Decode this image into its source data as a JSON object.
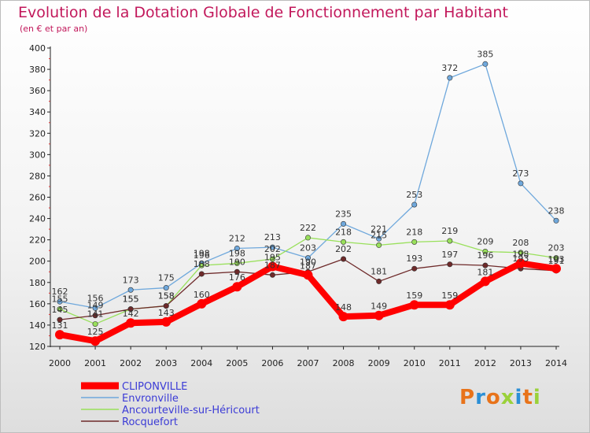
{
  "chart_data": {
    "type": "line",
    "title": "Evolution de la Dotation Globale de Fonctionnement par Habitant",
    "subtitle": "(en € et par an)",
    "categories": [
      "2000",
      "2001",
      "2002",
      "2003",
      "2004",
      "2005",
      "2006",
      "2007",
      "2008",
      "2009",
      "2010",
      "2011",
      "2012",
      "2013",
      "2014"
    ],
    "ylim": [
      120,
      400
    ],
    "yticks": [
      120,
      140,
      160,
      180,
      200,
      220,
      240,
      260,
      280,
      300,
      320,
      340,
      360,
      380,
      400
    ],
    "grid": false,
    "legend_position": "bottom-left",
    "series": [
      {
        "name": "CLIPONVILLE",
        "color": "#ff0000",
        "values": [
          131,
          125,
          142,
          143,
          160,
          176,
          195,
          187,
          148,
          149,
          159,
          159,
          181,
          198,
          193
        ],
        "labels": [
          "131",
          "125",
          "142",
          "143",
          "160",
          "176",
          "195",
          "187",
          "148",
          "149",
          "159",
          "159",
          "181",
          "198",
          "193"
        ]
      },
      {
        "name": "Envronville",
        "color": "#6fa8dc",
        "values": [
          162,
          156,
          173,
          175,
          198,
          212,
          213,
          203,
          235,
          221,
          253,
          372,
          385,
          273,
          238
        ],
        "labels": [
          "162",
          "156",
          "173",
          "175",
          "198",
          "212",
          "213",
          "203",
          "235",
          "221",
          "253",
          "372",
          "385",
          "273",
          "238"
        ]
      },
      {
        "name": "Ancourteville-sur-Héricourt",
        "color": "#99e05b",
        "values": [
          155,
          141,
          155,
          158,
          196,
          198,
          202,
          222,
          218,
          215,
          218,
          219,
          209,
          208,
          203
        ],
        "labels": [
          "155",
          "141",
          "155",
          "158",
          "196",
          "198",
          "202",
          "222",
          "218",
          "215",
          "218",
          "219",
          "209",
          "208",
          "203"
        ]
      },
      {
        "name": "Rocquefort",
        "color": "#6e2a2a",
        "values": [
          145,
          149,
          155,
          158,
          188,
          190,
          187,
          190,
          202,
          181,
          193,
          197,
          196,
          193,
          191
        ],
        "labels": [
          "145",
          "149",
          "155",
          "158",
          "188",
          "190",
          "187",
          "190",
          "202",
          "181",
          "193",
          "197",
          "196",
          "193",
          "191"
        ]
      }
    ]
  },
  "logo": {
    "text": "Proxiti",
    "colors": [
      "#e8731a",
      "#2b8fd6",
      "#e8731a",
      "#9ad13a",
      "#2b8fd6",
      "#e8731a",
      "#9ad13a"
    ]
  }
}
